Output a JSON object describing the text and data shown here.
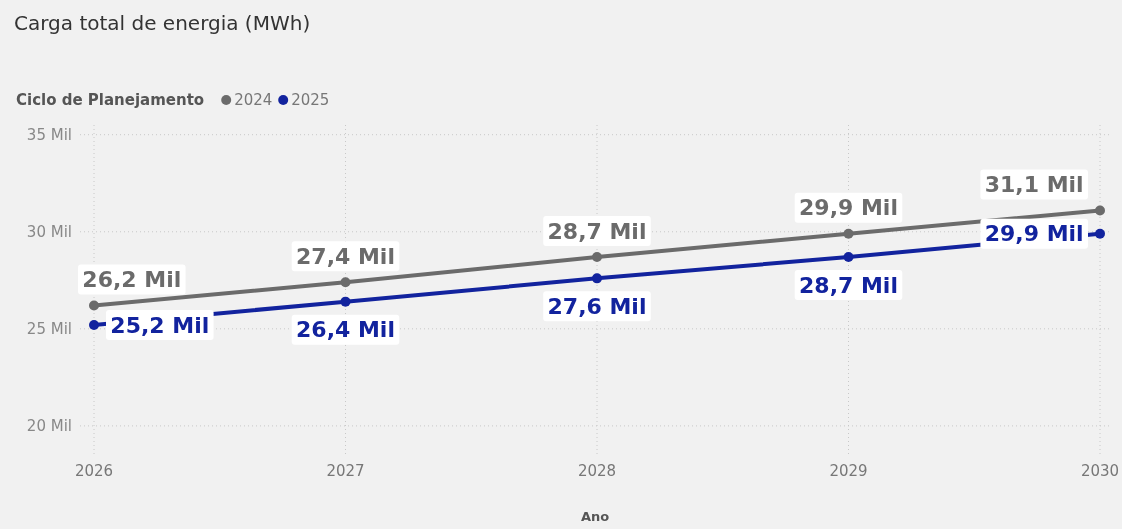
{
  "chart_data": {
    "type": "line",
    "title": "Carga total de energia (MWh)",
    "xlabel": "Ano",
    "legend_title": "Ciclo de Planejamento",
    "legend": "top left",
    "grid": true,
    "marker": "circle",
    "line_style": "solid",
    "x": [
      2026,
      2027,
      2028,
      2029,
      2030
    ],
    "xlim": [
      2026,
      2030
    ],
    "xticks": [
      2026,
      2027,
      2028,
      2029,
      2030
    ],
    "ylim": [
      18.5,
      35.5
    ],
    "yticks": [
      {
        "value": 20,
        "label": "20 Mil"
      },
      {
        "value": 25,
        "label": "25 Mil"
      },
      {
        "value": 30,
        "label": "30 Mil"
      },
      {
        "value": 35,
        "label": "35 Mil"
      }
    ],
    "series": [
      {
        "name": "2024",
        "color": "#6b6b6b",
        "values": [
          26.2,
          27.4,
          28.7,
          29.9,
          31.1
        ],
        "value_labels": [
          "26,2 Mil",
          "27,4 Mil",
          "28,7 Mil",
          "29,9 Mil",
          "31,1 Mil"
        ]
      },
      {
        "name": "2025",
        "color": "#12239e",
        "values": [
          25.2,
          26.4,
          27.6,
          28.7,
          29.9
        ],
        "value_labels": [
          "25,2 Mil",
          "26,4 Mil",
          "27,6 Mil",
          "28,7 Mil",
          "29,9 Mil"
        ]
      }
    ]
  }
}
